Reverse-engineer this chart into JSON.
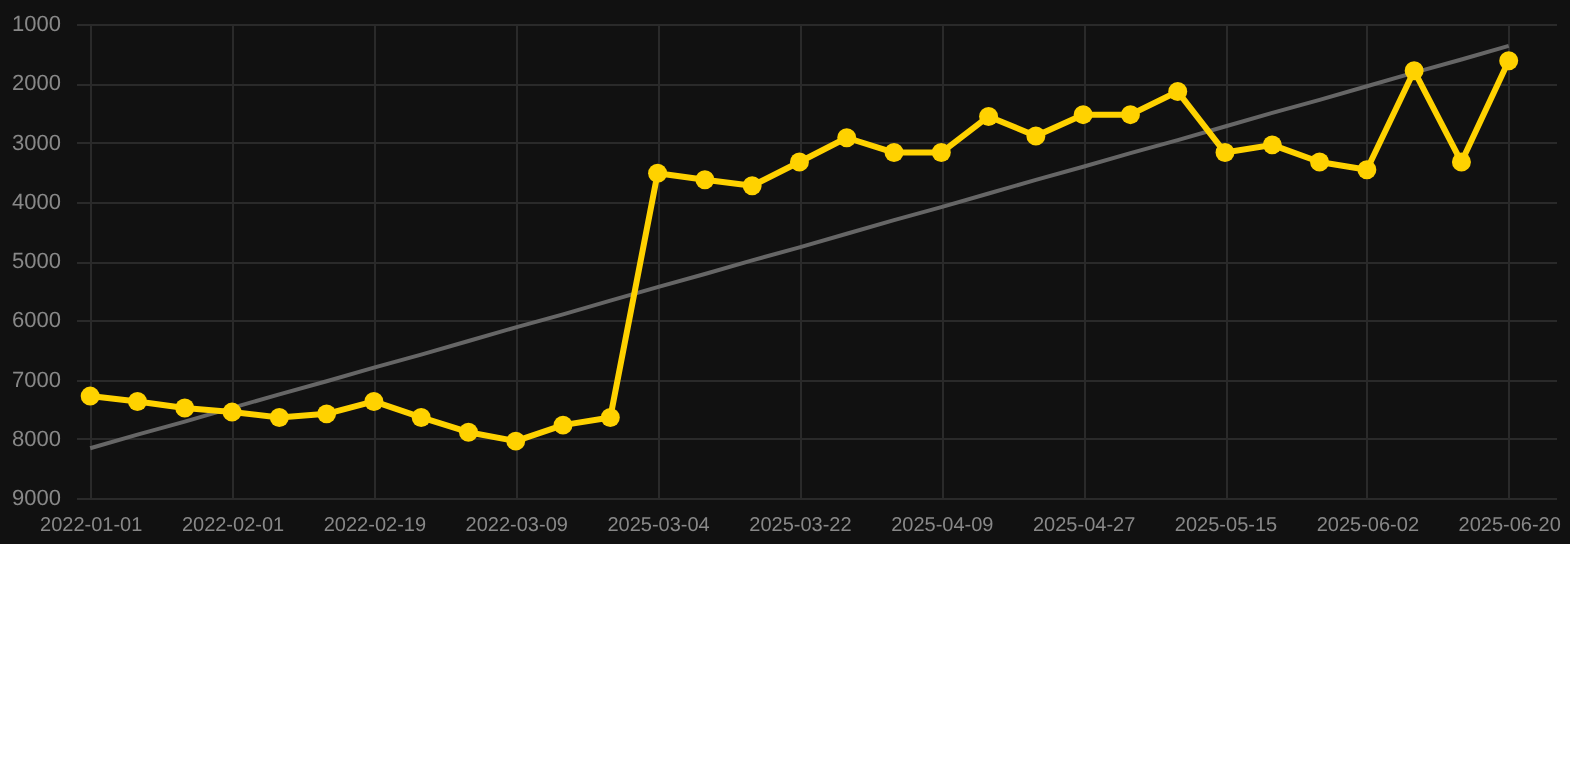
{
  "chart_data": {
    "type": "line",
    "categories": [
      "2022-01-01",
      null,
      null,
      "2022-02-01",
      null,
      null,
      "2022-02-19",
      null,
      null,
      "2022-03-09",
      null,
      null,
      "2025-03-04",
      null,
      null,
      "2025-03-22",
      null,
      null,
      "2025-04-09",
      null,
      null,
      "2025-04-27",
      null,
      null,
      "2025-05-15",
      null,
      null,
      "2025-06-02",
      null,
      null,
      "2025-06-20"
    ],
    "series": [
      {
        "color": "#ffd200",
        "marker": "circle",
        "values": [
          7280,
          7370,
          7480,
          7550,
          7640,
          7580,
          7370,
          7640,
          7890,
          8040,
          7770,
          7640,
          3520,
          3630,
          3730,
          3330,
          2920,
          3170,
          3170,
          2560,
          2890,
          2530,
          2530,
          2140,
          3170,
          3040,
          3330,
          3460,
          1790,
          3330,
          1620
        ]
      },
      {
        "color": "#666666",
        "marker": "none",
        "values": [
          8160,
          7930,
          7710,
          7480,
          7250,
          7030,
          6800,
          6580,
          6350,
          6120,
          5900,
          5670,
          5440,
          5220,
          4990,
          4770,
          4540,
          4310,
          4090,
          3860,
          3630,
          3410,
          3180,
          2960,
          2730,
          2500,
          2280,
          2050,
          1820,
          1600,
          1370
        ]
      }
    ],
    "ylim": [
      9000,
      1000
    ],
    "yticks": [
      1000,
      2000,
      3000,
      4000,
      5000,
      6000,
      7000,
      8000,
      9000
    ],
    "grid": true
  }
}
